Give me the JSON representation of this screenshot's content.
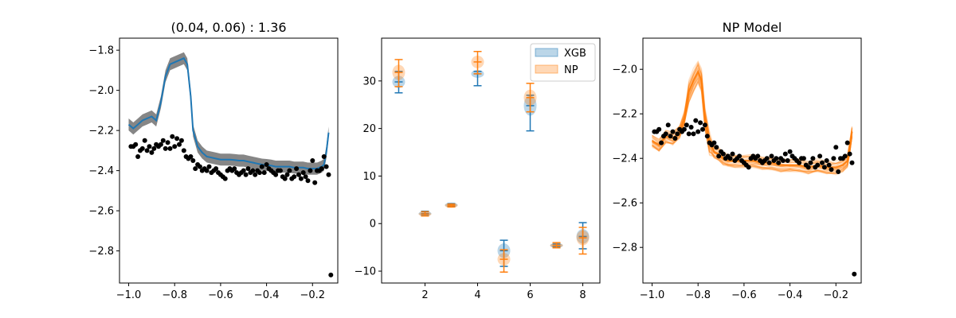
{
  "colors": {
    "xgb": "#1f77b4",
    "np": "#ff7f0e",
    "band": "#808080",
    "points": "#000000",
    "axis": "#000000",
    "background": "#ffffff"
  },
  "chart_data": [
    {
      "type": "line",
      "title": "(0.04, 0.06) : 1.36",
      "xlabel": "",
      "ylabel": "",
      "xlim": [
        -1.04,
        -0.09
      ],
      "ylim": [
        -2.96,
        -1.74
      ],
      "xticks": [
        -1.0,
        -0.8,
        -0.6,
        -0.4,
        -0.2
      ],
      "xtick_labels": [
        "−1.0",
        "−0.8",
        "−0.6",
        "−0.4",
        "−0.2"
      ],
      "yticks": [
        -2.8,
        -2.6,
        -2.4,
        -2.2,
        -2.0,
        -1.8
      ],
      "ytick_labels": [
        "−2.8",
        "−2.6",
        "−2.4",
        "−2.2",
        "−2.0",
        "−1.8"
      ],
      "grid": false,
      "line": {
        "x": [
          -1.0,
          -0.98,
          -0.96,
          -0.94,
          -0.92,
          -0.9,
          -0.88,
          -0.86,
          -0.84,
          -0.82,
          -0.8,
          -0.78,
          -0.76,
          -0.745,
          -0.73,
          -0.72,
          -0.7,
          -0.68,
          -0.66,
          -0.64,
          -0.62,
          -0.6,
          -0.58,
          -0.56,
          -0.54,
          -0.52,
          -0.5,
          -0.48,
          -0.46,
          -0.44,
          -0.42,
          -0.4,
          -0.38,
          -0.36,
          -0.34,
          -0.32,
          -0.3,
          -0.28,
          -0.26,
          -0.24,
          -0.22,
          -0.2,
          -0.18,
          -0.16,
          -0.15,
          -0.14,
          -0.13
        ],
        "y": [
          -2.17,
          -2.19,
          -2.17,
          -2.15,
          -2.14,
          -2.13,
          -2.15,
          -2.06,
          -1.93,
          -1.87,
          -1.86,
          -1.85,
          -1.84,
          -1.87,
          -2.03,
          -2.2,
          -2.28,
          -2.31,
          -2.33,
          -2.335,
          -2.34,
          -2.345,
          -2.345,
          -2.345,
          -2.347,
          -2.35,
          -2.35,
          -2.355,
          -2.36,
          -2.365,
          -2.37,
          -2.372,
          -2.375,
          -2.38,
          -2.38,
          -2.38,
          -2.38,
          -2.385,
          -2.385,
          -2.385,
          -2.39,
          -2.39,
          -2.39,
          -2.38,
          -2.37,
          -2.31,
          -2.21
        ],
        "band_half_width": 0.03
      },
      "points": {
        "x": [
          -0.99,
          -0.98,
          -0.97,
          -0.96,
          -0.95,
          -0.94,
          -0.93,
          -0.92,
          -0.91,
          -0.9,
          -0.89,
          -0.88,
          -0.87,
          -0.86,
          -0.85,
          -0.84,
          -0.83,
          -0.82,
          -0.81,
          -0.8,
          -0.79,
          -0.78,
          -0.77,
          -0.76,
          -0.75,
          -0.74,
          -0.73,
          -0.72,
          -0.71,
          -0.7,
          -0.69,
          -0.68,
          -0.67,
          -0.66,
          -0.65,
          -0.64,
          -0.63,
          -0.62,
          -0.61,
          -0.6,
          -0.59,
          -0.58,
          -0.57,
          -0.56,
          -0.55,
          -0.54,
          -0.53,
          -0.52,
          -0.51,
          -0.5,
          -0.49,
          -0.48,
          -0.47,
          -0.46,
          -0.45,
          -0.44,
          -0.43,
          -0.42,
          -0.41,
          -0.4,
          -0.39,
          -0.38,
          -0.37,
          -0.36,
          -0.35,
          -0.34,
          -0.33,
          -0.32,
          -0.31,
          -0.3,
          -0.29,
          -0.28,
          -0.27,
          -0.26,
          -0.25,
          -0.24,
          -0.23,
          -0.22,
          -0.21,
          -0.2,
          -0.19,
          -0.18,
          -0.17,
          -0.16,
          -0.15,
          -0.14,
          -0.13,
          -0.12
        ],
        "y": [
          -2.28,
          -2.28,
          -2.27,
          -2.33,
          -2.3,
          -2.29,
          -2.25,
          -2.3,
          -2.28,
          -2.31,
          -2.29,
          -2.27,
          -2.28,
          -2.27,
          -2.25,
          -2.29,
          -2.26,
          -2.29,
          -2.23,
          -2.28,
          -2.24,
          -2.27,
          -2.25,
          -2.3,
          -2.33,
          -2.34,
          -2.33,
          -2.35,
          -2.39,
          -2.37,
          -2.38,
          -2.4,
          -2.39,
          -2.4,
          -2.38,
          -2.41,
          -2.4,
          -2.39,
          -2.41,
          -2.42,
          -2.43,
          -2.44,
          -2.4,
          -2.39,
          -2.4,
          -2.39,
          -2.41,
          -2.42,
          -2.41,
          -2.4,
          -2.42,
          -2.39,
          -2.41,
          -2.4,
          -2.42,
          -2.4,
          -2.41,
          -2.38,
          -2.41,
          -2.37,
          -2.39,
          -2.4,
          -2.41,
          -2.42,
          -2.4,
          -2.4,
          -2.43,
          -2.44,
          -2.42,
          -2.4,
          -2.44,
          -2.43,
          -2.39,
          -2.42,
          -2.44,
          -2.41,
          -2.43,
          -2.45,
          -2.4,
          -2.35,
          -2.46,
          -2.4,
          -2.4,
          -2.39,
          -2.33,
          -2.38,
          -2.42,
          -2.92
        ]
      }
    },
    {
      "type": "violin",
      "title": "",
      "xlabel": "",
      "ylabel": "",
      "xlim": [
        0.35,
        8.65
      ],
      "ylim": [
        -12.5,
        39
      ],
      "xticks": [
        2,
        4,
        6,
        8
      ],
      "xtick_labels": [
        "2",
        "4",
        "6",
        "8"
      ],
      "yticks": [
        -10,
        0,
        10,
        20,
        30
      ],
      "ytick_labels": [
        "−10",
        "0",
        "10",
        "20",
        "30"
      ],
      "grid": false,
      "legend": {
        "placement": "top-right",
        "entries": [
          "XGB",
          "NP"
        ]
      },
      "series": [
        {
          "name": "XGB",
          "positions": [
            1,
            2,
            3,
            4,
            5,
            6,
            7,
            8
          ],
          "min": [
            27.5,
            1.7,
            3.6,
            29.0,
            -9.0,
            19.5,
            -4.9,
            -5.3
          ],
          "max": [
            32.0,
            2.6,
            4.2,
            32.0,
            -3.5,
            27.0,
            -4.3,
            0.2
          ],
          "median": [
            29.8,
            2.1,
            3.9,
            31.5,
            -5.7,
            24.8,
            -4.6,
            -2.7
          ]
        },
        {
          "name": "NP",
          "positions": [
            1,
            2,
            3,
            4,
            5,
            6,
            7,
            8
          ],
          "min": [
            28.8,
            1.6,
            3.5,
            31.5,
            -10.2,
            23.5,
            -5.1,
            -6.4
          ],
          "max": [
            34.5,
            2.5,
            4.1,
            36.2,
            -5.5,
            29.5,
            -4.0,
            -0.8
          ],
          "median": [
            31.8,
            2.0,
            3.8,
            34.0,
            -7.5,
            26.5,
            -4.6,
            -3.0
          ]
        }
      ]
    },
    {
      "type": "line",
      "title": "NP Model",
      "xlabel": "",
      "ylabel": "",
      "xlim": [
        -1.04,
        -0.09
      ],
      "ylim": [
        -2.96,
        -1.86
      ],
      "xticks": [
        -1.0,
        -0.8,
        -0.6,
        -0.4,
        -0.2
      ],
      "xtick_labels": [
        "−1.0",
        "−0.8",
        "−0.6",
        "−0.4",
        "−0.2"
      ],
      "yticks": [
        -2.8,
        -2.6,
        -2.4,
        -2.2,
        -2.0
      ],
      "ytick_labels": [
        "−2.8",
        "−2.6",
        "−2.4",
        "−2.2",
        "−2.0"
      ],
      "grid": false,
      "mean_line": {
        "x": [
          -1.0,
          -0.97,
          -0.94,
          -0.91,
          -0.88,
          -0.86,
          -0.84,
          -0.82,
          -0.8,
          -0.785,
          -0.77,
          -0.75,
          -0.73,
          -0.71,
          -0.69,
          -0.67,
          -0.64,
          -0.6,
          -0.56,
          -0.52,
          -0.48,
          -0.44,
          -0.4,
          -0.36,
          -0.32,
          -0.28,
          -0.24,
          -0.2,
          -0.17,
          -0.15,
          -0.14,
          -0.13
        ],
        "y": [
          -2.32,
          -2.34,
          -2.3,
          -2.31,
          -2.28,
          -2.22,
          -2.1,
          -2.05,
          -2.01,
          -2.05,
          -2.22,
          -2.33,
          -2.37,
          -2.38,
          -2.4,
          -2.41,
          -2.41,
          -2.41,
          -2.41,
          -2.42,
          -2.42,
          -2.43,
          -2.43,
          -2.43,
          -2.44,
          -2.43,
          -2.44,
          -2.44,
          -2.43,
          -2.41,
          -2.35,
          -2.28
        ]
      },
      "sample_count": 40,
      "sample_spread": 0.03,
      "points_from_panel": 0
    }
  ]
}
